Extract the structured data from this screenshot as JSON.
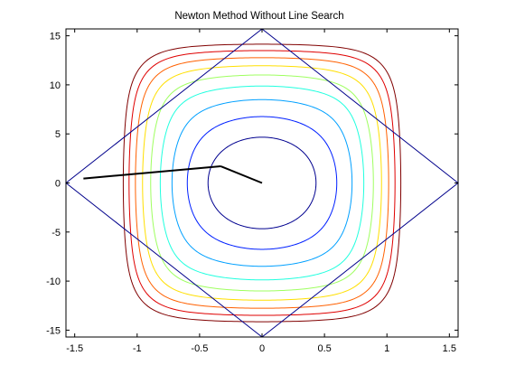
{
  "chart_data": {
    "type": "line",
    "title": "Newton Method Without Line Search",
    "xlabel": "",
    "ylabel": "",
    "xlim": [
      -1.57,
      1.57
    ],
    "ylim": [
      -15.7,
      15.7
    ],
    "grid": false,
    "x_ticks": [
      "-1.5",
      "-1",
      "-0.5",
      "0",
      "0.5",
      "1",
      "1.5"
    ],
    "y_ticks": [
      "-15",
      "-10",
      "-5",
      "0",
      "5",
      "10",
      "15"
    ],
    "contours": {
      "colors": [
        "#00008f",
        "#0020ff",
        "#00a0ff",
        "#20ffdf",
        "#9fff60",
        "#ffdf00",
        "#ff6000",
        "#df0000",
        "#800000"
      ],
      "levels": [
        0.2,
        0.45,
        0.8,
        1.25,
        1.8,
        2.45,
        3.2,
        4.05,
        5.0
      ]
    },
    "constraint_region": {
      "vertices": [
        [
          1.57,
          0
        ],
        [
          0,
          15.7
        ],
        [
          -1.57,
          0
        ],
        [
          0,
          -15.7
        ]
      ],
      "color": "#00008b"
    },
    "iterate_path": {
      "points": [
        [
          -1.43,
          0.45
        ],
        [
          -0.33,
          1.7
        ],
        [
          0,
          0
        ]
      ],
      "color": "#000000"
    }
  }
}
